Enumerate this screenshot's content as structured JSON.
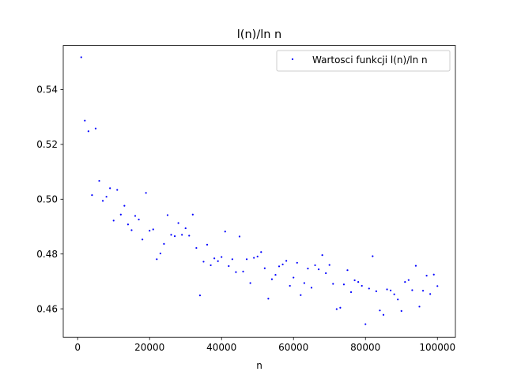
{
  "chart_data": {
    "type": "scatter",
    "title": "l(n)/ln n",
    "xlabel": "n",
    "ylabel": "",
    "xlim": [
      -4000,
      105000
    ],
    "ylim": [
      0.4496,
      0.5561
    ],
    "xticks": [
      0,
      20000,
      40000,
      60000,
      80000,
      100000
    ],
    "xtick_labels": [
      "0",
      "20000",
      "40000",
      "60000",
      "80000",
      "100000"
    ],
    "yticks": [
      0.46,
      0.48,
      0.5,
      0.52,
      0.54
    ],
    "ytick_labels": [
      "0.46",
      "0.48",
      "0.50",
      "0.52",
      "0.54"
    ],
    "grid": false,
    "legend_position": "top-right",
    "series": [
      {
        "name": "Wartosci funkcji l(n)/ln n",
        "color": "#0000ff",
        "marker": "dot",
        "points": [
          [
            1000,
            0.5518
          ],
          [
            2000,
            0.5287
          ],
          [
            3000,
            0.5248
          ],
          [
            4000,
            0.5015
          ],
          [
            5000,
            0.5258
          ],
          [
            6000,
            0.5067
          ],
          [
            7000,
            0.4994
          ],
          [
            8000,
            0.5009
          ],
          [
            9000,
            0.504
          ],
          [
            10000,
            0.4922
          ],
          [
            11000,
            0.5034
          ],
          [
            12000,
            0.4944
          ],
          [
            13000,
            0.4976
          ],
          [
            14000,
            0.4908
          ],
          [
            15000,
            0.4887
          ],
          [
            16000,
            0.4939
          ],
          [
            17000,
            0.4926
          ],
          [
            18000,
            0.4853
          ],
          [
            19000,
            0.5023
          ],
          [
            20000,
            0.4885
          ],
          [
            21000,
            0.489
          ],
          [
            22000,
            0.4781
          ],
          [
            23000,
            0.4802
          ],
          [
            24000,
            0.4837
          ],
          [
            25000,
            0.4942
          ],
          [
            26000,
            0.487
          ],
          [
            27000,
            0.4865
          ],
          [
            28000,
            0.4913
          ],
          [
            29000,
            0.487
          ],
          [
            30000,
            0.4894
          ],
          [
            31000,
            0.4867
          ],
          [
            32000,
            0.4944
          ],
          [
            33000,
            0.4822
          ],
          [
            34000,
            0.4649
          ],
          [
            35000,
            0.4772
          ],
          [
            36000,
            0.4834
          ],
          [
            37000,
            0.4759
          ],
          [
            38000,
            0.4784
          ],
          [
            39000,
            0.4774
          ],
          [
            40000,
            0.4789
          ],
          [
            41000,
            0.4882
          ],
          [
            42000,
            0.4756
          ],
          [
            43000,
            0.4781
          ],
          [
            44000,
            0.4734
          ],
          [
            45000,
            0.4864
          ],
          [
            46000,
            0.4736
          ],
          [
            47000,
            0.4781
          ],
          [
            48000,
            0.4694
          ],
          [
            49000,
            0.4786
          ],
          [
            50000,
            0.4791
          ],
          [
            51000,
            0.4807
          ],
          [
            52000,
            0.4748
          ],
          [
            53000,
            0.4637
          ],
          [
            54000,
            0.4708
          ],
          [
            55000,
            0.4724
          ],
          [
            56000,
            0.4755
          ],
          [
            57000,
            0.4762
          ],
          [
            58000,
            0.4775
          ],
          [
            59000,
            0.4684
          ],
          [
            60000,
            0.4714
          ],
          [
            61000,
            0.4768
          ],
          [
            62000,
            0.465
          ],
          [
            63000,
            0.4694
          ],
          [
            64000,
            0.4747
          ],
          [
            65000,
            0.4677
          ],
          [
            66000,
            0.4759
          ],
          [
            67000,
            0.4744
          ],
          [
            68000,
            0.4796
          ],
          [
            69000,
            0.473
          ],
          [
            70000,
            0.476
          ],
          [
            71000,
            0.4691
          ],
          [
            72000,
            0.4599
          ],
          [
            73000,
            0.4604
          ],
          [
            74000,
            0.4689
          ],
          [
            75000,
            0.4741
          ],
          [
            76000,
            0.4661
          ],
          [
            77000,
            0.4704
          ],
          [
            78000,
            0.4698
          ],
          [
            79000,
            0.4684
          ],
          [
            80000,
            0.4544
          ],
          [
            81000,
            0.4674
          ],
          [
            82000,
            0.4792
          ],
          [
            83000,
            0.4664
          ],
          [
            84000,
            0.4594
          ],
          [
            85000,
            0.4578
          ],
          [
            86000,
            0.4671
          ],
          [
            87000,
            0.4667
          ],
          [
            88000,
            0.4653
          ],
          [
            89000,
            0.4634
          ],
          [
            90000,
            0.4592
          ],
          [
            91000,
            0.4698
          ],
          [
            92000,
            0.4705
          ],
          [
            93000,
            0.4668
          ],
          [
            94000,
            0.4757
          ],
          [
            95000,
            0.4608
          ],
          [
            96000,
            0.4666
          ],
          [
            97000,
            0.4721
          ],
          [
            98000,
            0.4654
          ],
          [
            99000,
            0.4725
          ],
          [
            100000,
            0.4683
          ]
        ]
      }
    ]
  }
}
